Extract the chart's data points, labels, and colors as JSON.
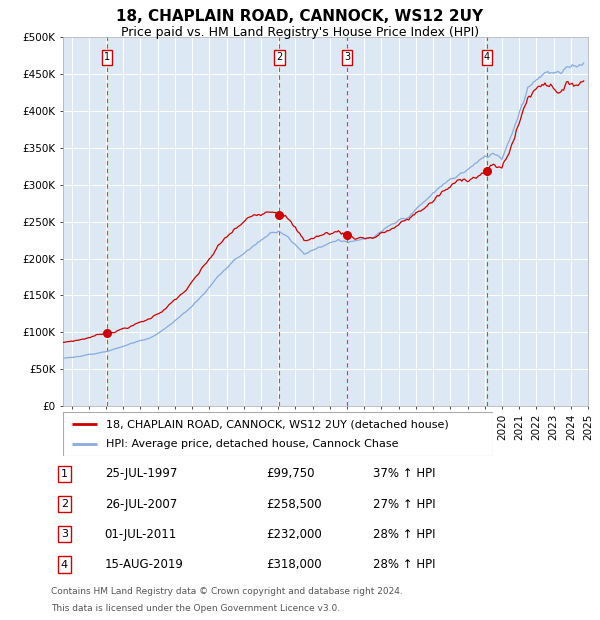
{
  "title": "18, CHAPLAIN ROAD, CANNOCK, WS12 2UY",
  "subtitle": "Price paid vs. HM Land Registry's House Price Index (HPI)",
  "ylim": [
    0,
    500000
  ],
  "yticks": [
    0,
    50000,
    100000,
    150000,
    200000,
    250000,
    300000,
    350000,
    400000,
    450000,
    500000
  ],
  "ytick_labels": [
    "£0",
    "£50K",
    "£100K",
    "£150K",
    "£200K",
    "£250K",
    "£300K",
    "£350K",
    "£400K",
    "£450K",
    "£500K"
  ],
  "plot_bg_color": "#dce9f5",
  "red_line_color": "#cc0000",
  "blue_line_color": "#88aadd",
  "dashed_line_color": "#cc4444",
  "sales": [
    {
      "num": 1,
      "date_year": 1997.56,
      "price": 99750,
      "label": "25-JUL-1997",
      "price_str": "£99,750",
      "hpi_str": "37% ↑ HPI"
    },
    {
      "num": 2,
      "date_year": 2007.57,
      "price": 258500,
      "label": "26-JUL-2007",
      "price_str": "£258,500",
      "hpi_str": "27% ↑ HPI"
    },
    {
      "num": 3,
      "date_year": 2011.5,
      "price": 232000,
      "label": "01-JUL-2011",
      "price_str": "£232,000",
      "hpi_str": "28% ↑ HPI"
    },
    {
      "num": 4,
      "date_year": 2019.62,
      "price": 318000,
      "label": "15-AUG-2019",
      "price_str": "£318,000",
      "hpi_str": "28% ↑ HPI"
    }
  ],
  "legend_red_label": "18, CHAPLAIN ROAD, CANNOCK, WS12 2UY (detached house)",
  "legend_blue_label": "HPI: Average price, detached house, Cannock Chase",
  "footer_line1": "Contains HM Land Registry data © Crown copyright and database right 2024.",
  "footer_line2": "This data is licensed under the Open Government Licence v3.0.",
  "title_fontsize": 11,
  "subtitle_fontsize": 9,
  "tick_fontsize": 7.5,
  "legend_fontsize": 8,
  "table_fontsize": 8.5,
  "footer_fontsize": 6.5
}
